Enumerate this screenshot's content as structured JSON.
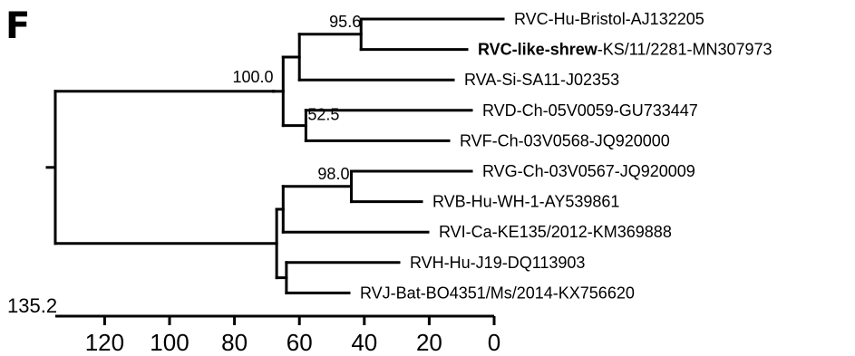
{
  "panel_label": "F",
  "tips": [
    {
      "id": "t1",
      "label": "RVC-Hu-Bristol-AJ132205",
      "bold_prefix": ""
    },
    {
      "id": "t2",
      "label": "-KS/11/2281-MN307973",
      "bold_prefix": "RVC-like-shrew"
    },
    {
      "id": "t3",
      "label": "RVA-Si-SA11-J02353",
      "bold_prefix": ""
    },
    {
      "id": "t4",
      "label": "RVD-Ch-05V0059-GU733447",
      "bold_prefix": ""
    },
    {
      "id": "t5",
      "label": "RVF-Ch-03V0568-JQ920000",
      "bold_prefix": ""
    },
    {
      "id": "t6",
      "label": "RVG-Ch-03V0567-JQ920009",
      "bold_prefix": ""
    },
    {
      "id": "t7",
      "label": "RVB-Hu-WH-1-AY539861",
      "bold_prefix": ""
    },
    {
      "id": "t8",
      "label": "RVI-Ca-KE135/2012-KM369888",
      "bold_prefix": ""
    },
    {
      "id": "t9",
      "label": "RVH-Hu-J19-DQ113903",
      "bold_prefix": ""
    },
    {
      "id": "t10",
      "label": "RVJ-Bat-BO4351/Ms/2014-KX756620",
      "bold_prefix": ""
    }
  ],
  "support_values": {
    "n_c_clade": "95.6",
    "n_top_root": "100.0",
    "n_df": "52.5",
    "n_gb": "98.0"
  },
  "axis": {
    "max_label": "135.2",
    "ticks": [
      {
        "value": 120,
        "label": "120"
      },
      {
        "value": 100,
        "label": "100"
      },
      {
        "value": 80,
        "label": "80"
      },
      {
        "value": 60,
        "label": "60"
      },
      {
        "value": 40,
        "label": "40"
      },
      {
        "value": 20,
        "label": "20"
      },
      {
        "value": 0,
        "label": "0"
      }
    ]
  },
  "tree": {
    "id": "root",
    "age": 135.2,
    "children": [
      {
        "id": "n_top",
        "age": 68,
        "children": [
          {
            "id": "n_top_root",
            "age": 65,
            "children": [
              {
                "id": "n_c_clade",
                "age": 60,
                "children": [
                  {
                    "id": "n_c",
                    "age": 41,
                    "children": [
                      {
                        "tip": "t1"
                      },
                      {
                        "tip": "t2"
                      }
                    ]
                  },
                  {
                    "tip": "t3"
                  }
                ]
              },
              {
                "id": "n_df",
                "age": 58,
                "children": [
                  {
                    "tip": "t4"
                  },
                  {
                    "tip": "t5"
                  }
                ]
              }
            ]
          }
        ]
      },
      {
        "id": "n_bot",
        "age": 67,
        "children": [
          {
            "id": "n_bot_a",
            "age": 65,
            "children": [
              {
                "id": "n_gb",
                "age": 44,
                "children": [
                  {
                    "tip": "t6"
                  },
                  {
                    "tip": "t7"
                  }
                ]
              },
              {
                "tip": "t8"
              }
            ]
          },
          {
            "id": "n_hj",
            "age": 64,
            "children": [
              {
                "tip": "t9"
              },
              {
                "tip": "t10"
              }
            ]
          }
        ]
      }
    ]
  }
}
